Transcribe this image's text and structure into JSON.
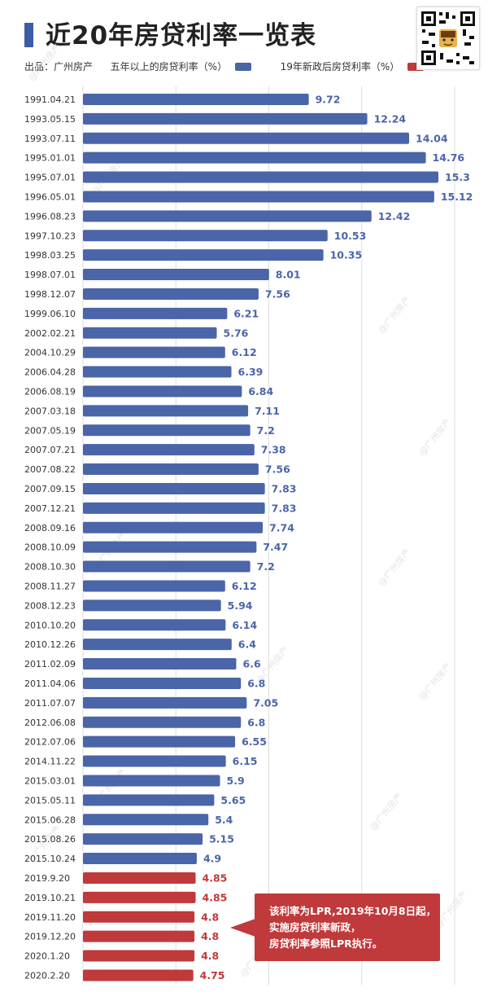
{
  "header": {
    "title": "近20年房贷利率一览表",
    "source_label": "出品：广州房产",
    "legend_old": "五年以上的房贷利率（%）",
    "legend_new": "19年新政后房贷利率（%）"
  },
  "colors": {
    "old": "#4a65a8",
    "new": "#c0393b",
    "accent": "#3d5ca6"
  },
  "watermark": "@广州房产",
  "note": {
    "line1": "该利率为LPR,2019年10月8日起，",
    "line2": "实施房贷利率新政，",
    "line3": "房贷利率参照LPR执行。"
  },
  "chart_data": {
    "type": "bar",
    "orientation": "horizontal",
    "categories": [
      "1991.04.21",
      "1993.05.15",
      "1993.07.11",
      "1995.01.01",
      "1995.07.01",
      "1996.05.01",
      "1996.08.23",
      "1997.10.23",
      "1998.03.25",
      "1998.07.01",
      "1998.12.07",
      "1999.06.10",
      "2002.02.21",
      "2004.10.29",
      "2006.04.28",
      "2006.08.19",
      "2007.03.18",
      "2007.05.19",
      "2007.07.21",
      "2007.08.22",
      "2007.09.15",
      "2007.12.21",
      "2008.09.16",
      "2008.10.09",
      "2008.10.30",
      "2008.11.27",
      "2008.12.23",
      "2010.10.20",
      "2010.12.26",
      "2011.02.09",
      "2011.04.06",
      "2011.07.07",
      "2012.06.08",
      "2012.07.06",
      "2014.11.22",
      "2015.03.01",
      "2015.05.11",
      "2015.06.28",
      "2015.08.26",
      "2015.10.24",
      "2019.9.20",
      "2019.10.21",
      "2019.11.20",
      "2019.12.20",
      "2020.1.20",
      "2020.2.20"
    ],
    "values": [
      9.72,
      12.24,
      14.04,
      14.76,
      15.3,
      15.12,
      12.42,
      10.53,
      10.35,
      8.01,
      7.56,
      6.21,
      5.76,
      6.12,
      6.39,
      6.84,
      7.11,
      7.2,
      7.38,
      7.56,
      7.83,
      7.83,
      7.74,
      7.47,
      7.2,
      6.12,
      5.94,
      6.14,
      6.4,
      6.6,
      6.8,
      7.05,
      6.8,
      6.55,
      6.15,
      5.9,
      5.65,
      5.4,
      5.15,
      4.9,
      4.85,
      4.85,
      4.8,
      4.8,
      4.8,
      4.75
    ],
    "label_text": [
      "9.72",
      "12.24",
      "14.04",
      "14.76",
      "15.3",
      "15.12",
      "12.42",
      "10.53",
      "10.35",
      "8.01",
      "7.56",
      "6.21",
      "5.76",
      "6.12",
      "6.39",
      "6.84",
      "7.11",
      "7.2",
      "7.38",
      "7.56",
      "7.83",
      "7.83",
      "7.74",
      "7.47",
      "7.2",
      "6.12",
      "5.94",
      "6.14",
      "6.4",
      "6.6",
      "6.8",
      "7.05",
      "6.8",
      "6.55",
      "6.15",
      "5.9",
      "5.65",
      "5.4",
      "5.15",
      "4.9",
      "4.85",
      "4.85",
      "4.8",
      "4.8",
      "4.8",
      "4.75"
    ],
    "series_index": [
      0,
      0,
      0,
      0,
      0,
      0,
      0,
      0,
      0,
      0,
      0,
      0,
      0,
      0,
      0,
      0,
      0,
      0,
      0,
      0,
      0,
      0,
      0,
      0,
      0,
      0,
      0,
      0,
      0,
      0,
      0,
      0,
      0,
      0,
      0,
      0,
      0,
      0,
      0,
      0,
      1,
      1,
      1,
      1,
      1,
      1
    ],
    "series": [
      {
        "name": "五年以上的房贷利率（%）",
        "color": "#4a65a8"
      },
      {
        "name": "19年新政后房贷利率（%）",
        "color": "#c0393b"
      }
    ],
    "xlim": [
      0,
      16
    ],
    "grid": true,
    "legend_position": "top"
  }
}
